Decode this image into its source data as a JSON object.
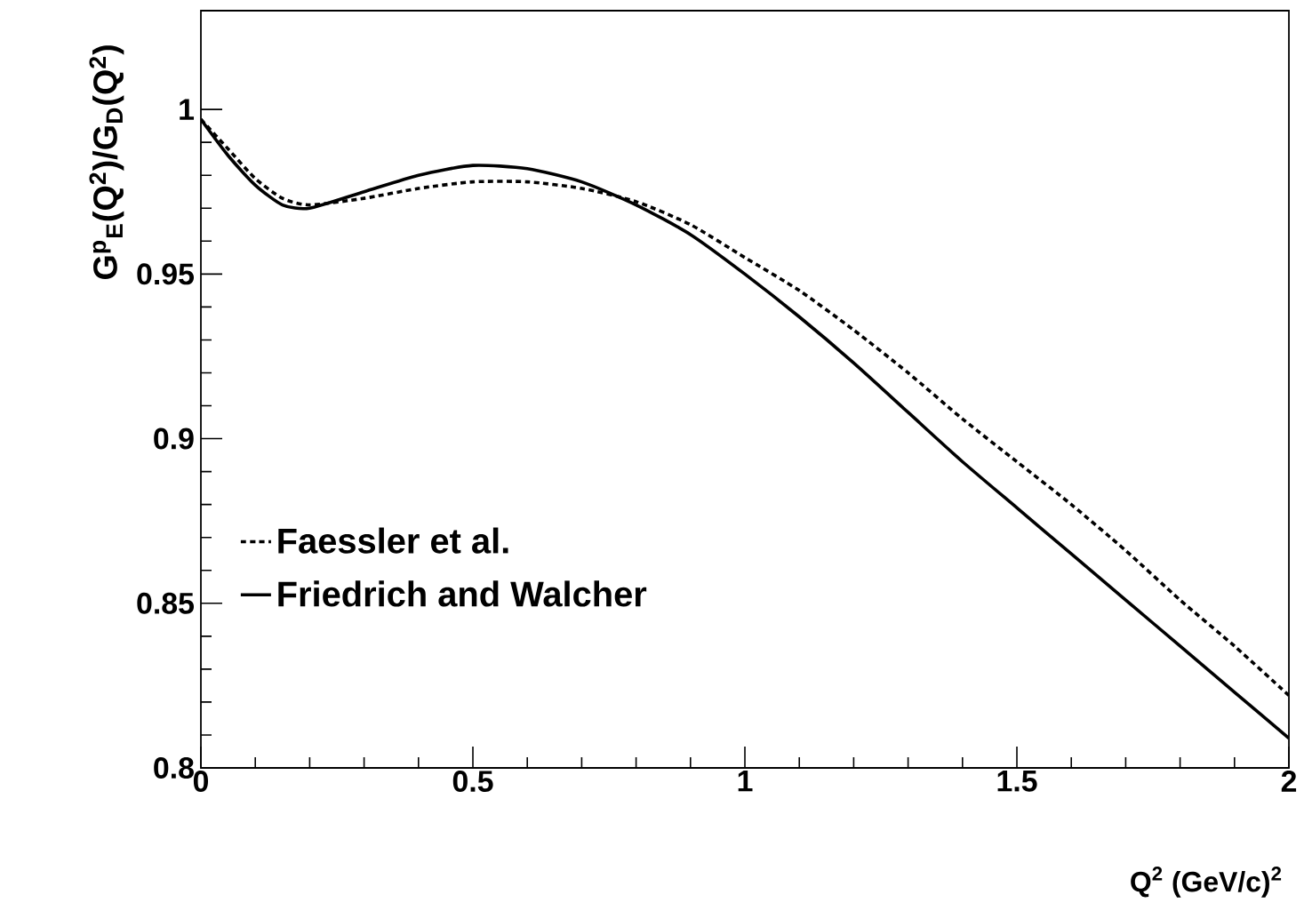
{
  "chart_data": {
    "type": "line",
    "xlabel": "Q$^{2}$ (GeV/c)$^{2}$",
    "ylabel": "G$^{p}$$_{E}$(Q$^{2}$)/G$_{D}$(Q$^{2}$)",
    "xlim": [
      0,
      2
    ],
    "ylim": [
      0.8,
      1.03
    ],
    "xticks": [
      0,
      0.5,
      1,
      1.5,
      2
    ],
    "yticks": [
      0.8,
      0.85,
      0.9,
      0.95,
      1
    ],
    "legend": "bottom left",
    "grid": false,
    "marker": "none",
    "series": [
      {
        "name": "Faessler et al.",
        "color": "#000000",
        "line_style": "dotted",
        "x": [
          0,
          0.05,
          0.1,
          0.15,
          0.2,
          0.3,
          0.4,
          0.5,
          0.6,
          0.7,
          0.8,
          0.9,
          1.0,
          1.1,
          1.2,
          1.3,
          1.4,
          1.5,
          1.6,
          1.7,
          1.8,
          1.9,
          2.0
        ],
        "values": [
          0.997,
          0.988,
          0.979,
          0.973,
          0.971,
          0.973,
          0.976,
          0.978,
          0.978,
          0.976,
          0.972,
          0.965,
          0.955,
          0.945,
          0.933,
          0.92,
          0.906,
          0.893,
          0.88,
          0.866,
          0.851,
          0.837,
          0.822
        ]
      },
      {
        "name": "Friedrich and Walcher",
        "color": "#000000",
        "line_style": "solid",
        "x": [
          0,
          0.05,
          0.1,
          0.15,
          0.2,
          0.3,
          0.4,
          0.5,
          0.6,
          0.7,
          0.8,
          0.9,
          1.0,
          1.1,
          1.2,
          1.3,
          1.4,
          1.5,
          1.6,
          1.7,
          1.8,
          1.9,
          2.0
        ],
        "values": [
          0.997,
          0.986,
          0.977,
          0.971,
          0.97,
          0.975,
          0.98,
          0.983,
          0.982,
          0.978,
          0.971,
          0.962,
          0.95,
          0.937,
          0.923,
          0.908,
          0.893,
          0.879,
          0.865,
          0.851,
          0.837,
          0.823,
          0.809
        ]
      }
    ]
  }
}
